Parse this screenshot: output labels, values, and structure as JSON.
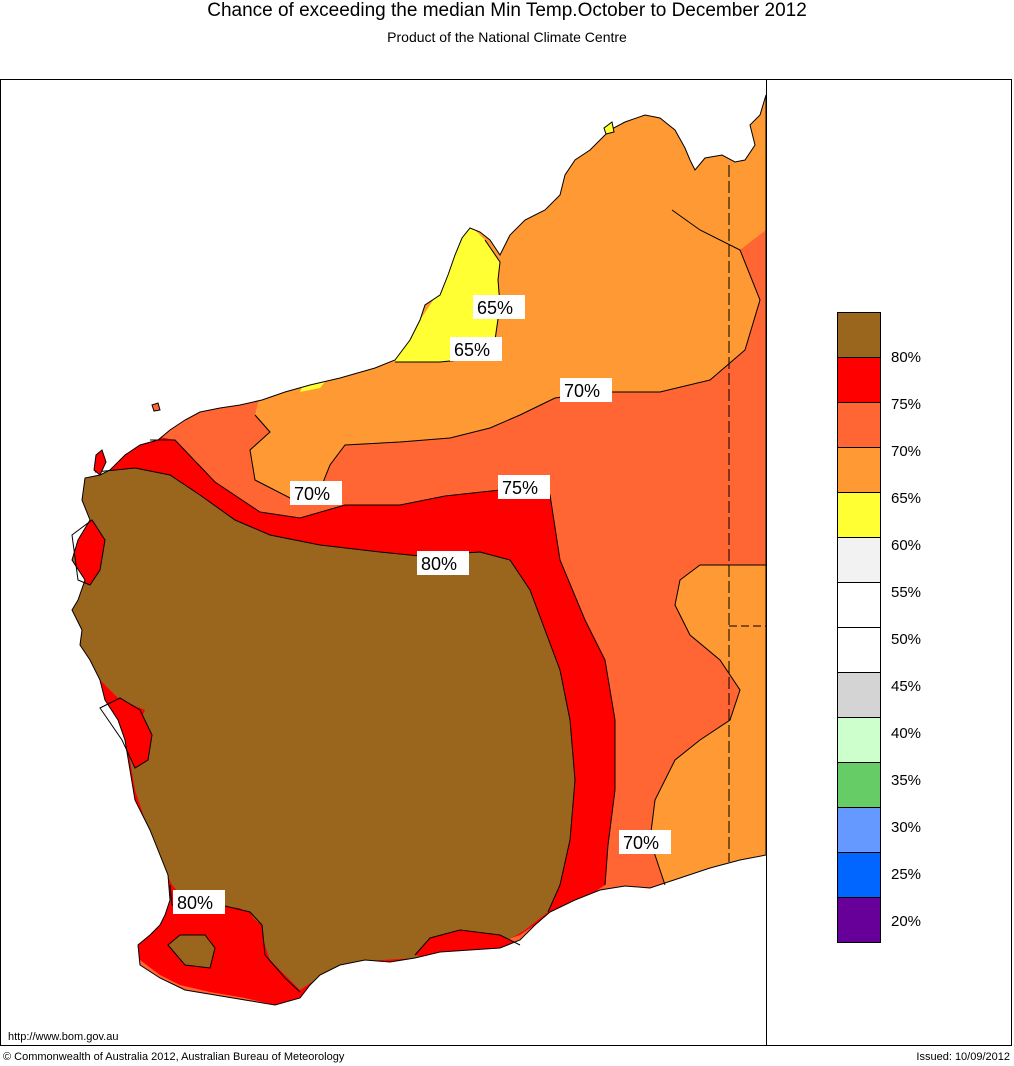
{
  "header": {
    "title": "Chance of exceeding the median Min Temp.October to December 2012",
    "subtitle": "Product of the National Climate Centre"
  },
  "map": {
    "region": "Western Australia",
    "colors": {
      "above_80": "#9a661d",
      "band_75_80": "#ff0000",
      "band_70_75": "#ff6633",
      "band_65_70": "#ff9933",
      "band_60_65": "#ffff33"
    },
    "contour_labels": [
      "65%",
      "65%",
      "70%",
      "70%",
      "75%",
      "80%",
      "70%",
      "80%"
    ]
  },
  "legend": {
    "swatches": [
      {
        "color": "#9a661d"
      },
      {
        "color": "#ff0000"
      },
      {
        "color": "#ff6633"
      },
      {
        "color": "#ff9933"
      },
      {
        "color": "#ffff33"
      },
      {
        "color": "#f2f2f2"
      },
      {
        "color": "#ffffff"
      },
      {
        "color": "#ffffff"
      },
      {
        "color": "#d4d4d4"
      },
      {
        "color": "#ccffcc"
      },
      {
        "color": "#66cc66"
      },
      {
        "color": "#6699ff"
      },
      {
        "color": "#0066ff"
      },
      {
        "color": "#660099"
      }
    ],
    "labels": [
      "80%",
      "75%",
      "70%",
      "65%",
      "60%",
      "55%",
      "50%",
      "45%",
      "40%",
      "35%",
      "30%",
      "25%",
      "20%"
    ]
  },
  "footer": {
    "url": "http://www.bom.gov.au",
    "copyright": "© Commonwealth of Australia 2012, Australian Bureau of Meteorology",
    "issued": "Issued: 10/09/2012"
  }
}
